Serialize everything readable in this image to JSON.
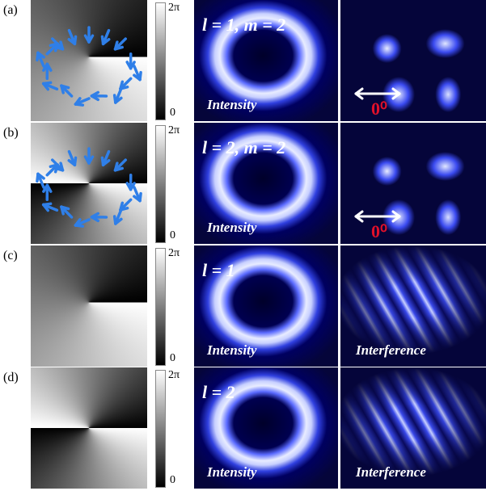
{
  "panels": [
    {
      "label": "(a)",
      "colorbar": {
        "max": "2π",
        "min": "0"
      },
      "mode": "l = 1, m = 2",
      "intensity": "Intensity",
      "right_label": "0⁰"
    },
    {
      "label": "(b)",
      "colorbar": {
        "max": "2π",
        "min": "0"
      },
      "mode": "l = 2, m = 2",
      "intensity": "Intensity",
      "right_label": "0⁰"
    },
    {
      "label": "(c)",
      "colorbar": {
        "max": "2π",
        "min": "0"
      },
      "mode": "l = 1",
      "intensity": "Intensity",
      "right_label": "Interference"
    },
    {
      "label": "(d)",
      "colorbar": {
        "max": "2π",
        "min": "0"
      },
      "mode": "l = 2",
      "intensity": "Intensity",
      "right_label": "Interference"
    }
  ]
}
